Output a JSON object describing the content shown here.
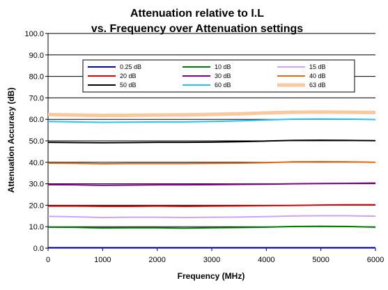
{
  "chart_data": {
    "type": "line",
    "title": "Attenuation relative to I.L",
    "subtitle": "vs. Frequency over Attenuation settings",
    "xlabel": "Frequency (MHz)",
    "ylabel": "Attenuation Accuracy (dB)",
    "xlim": [
      0,
      6000
    ],
    "ylim": [
      0,
      100
    ],
    "xticks": [
      0,
      1000,
      2000,
      3000,
      4000,
      5000,
      6000
    ],
    "yticks": [
      0,
      10,
      20,
      30,
      40,
      50,
      60,
      70,
      80,
      90,
      100
    ],
    "xtick_labels": [
      "0",
      "1000",
      "2000",
      "3000",
      "4000",
      "5000",
      "6000"
    ],
    "ytick_labels": [
      "0.0",
      "10.0",
      "20.0",
      "30.0",
      "40.0",
      "50.0",
      "60.0",
      "70.0",
      "80.0",
      "90.0",
      "100.0"
    ],
    "grid": "horizontal",
    "legend_position": "top-center",
    "x": [
      0,
      500,
      1000,
      1500,
      2000,
      2500,
      3000,
      3500,
      4000,
      4500,
      5000,
      5500,
      6000
    ],
    "series": [
      {
        "name": "0.25 dB",
        "color": "#0000cc",
        "width": 2,
        "values": [
          0.2,
          0.2,
          0.2,
          0.2,
          0.2,
          0.2,
          0.2,
          0.2,
          0.2,
          0.2,
          0.2,
          0.2,
          0.2
        ]
      },
      {
        "name": "10 dB",
        "color": "#007a00",
        "width": 2,
        "values": [
          9.8,
          9.7,
          9.4,
          9.5,
          9.5,
          9.3,
          9.5,
          9.6,
          9.8,
          10.1,
          10.2,
          10.1,
          9.8
        ]
      },
      {
        "name": "15 dB",
        "color": "#c8a2ff",
        "width": 2,
        "values": [
          14.8,
          14.6,
          14.3,
          14.4,
          14.4,
          14.3,
          14.4,
          14.5,
          14.7,
          15.0,
          15.1,
          15.1,
          14.9
        ]
      },
      {
        "name": "20 dB",
        "color": "#e00000",
        "width": 2,
        "values": [
          19.6,
          19.6,
          19.5,
          19.5,
          19.6,
          19.5,
          19.6,
          19.7,
          19.8,
          19.9,
          20.1,
          20.2,
          20.2
        ]
      },
      {
        "name": "30 dB",
        "color": "#800080",
        "width": 2,
        "values": [
          29.6,
          29.5,
          29.3,
          29.4,
          29.5,
          29.5,
          29.6,
          29.7,
          29.8,
          30.0,
          30.1,
          30.2,
          30.3
        ]
      },
      {
        "name": "40 dB",
        "color": "#e06a10",
        "width": 2,
        "values": [
          39.6,
          39.5,
          39.3,
          39.4,
          39.4,
          39.4,
          39.5,
          39.6,
          39.8,
          40.2,
          40.3,
          40.2,
          40.0
        ]
      },
      {
        "name": "50 dB",
        "color": "#000000",
        "width": 2,
        "values": [
          49.3,
          49.2,
          49.1,
          49.2,
          49.3,
          49.3,
          49.4,
          49.6,
          49.9,
          50.2,
          50.3,
          50.2,
          50.1
        ]
      },
      {
        "name": "60 dB",
        "color": "#22c4f0",
        "width": 2,
        "values": [
          59.0,
          58.8,
          58.6,
          58.7,
          58.8,
          58.8,
          59.0,
          59.3,
          59.7,
          60.1,
          60.2,
          60.1,
          59.9
        ]
      },
      {
        "name": "63 dB",
        "color": "#f7c99c",
        "width": 5,
        "values": [
          62.2,
          62.0,
          61.8,
          61.9,
          62.0,
          62.1,
          62.3,
          62.6,
          63.0,
          63.3,
          63.4,
          63.3,
          63.2
        ]
      }
    ]
  }
}
